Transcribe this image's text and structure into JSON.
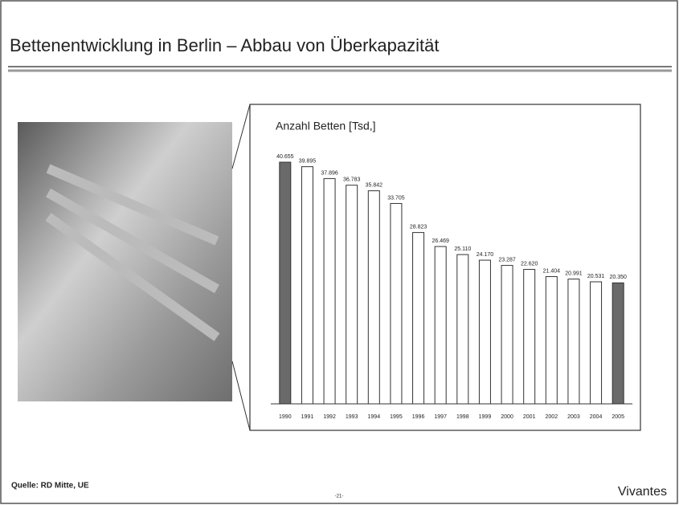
{
  "slide_title": "Bettenentwicklung in Berlin – Abbau von Überkapazität",
  "source": "Quelle: RD Mitte, UE",
  "page_number": "-21-",
  "logo": "Vivantes",
  "chart_data": {
    "type": "bar",
    "title": "Anzahl Betten [Tsd,]",
    "categories": [
      "1990",
      "1991",
      "1992",
      "1993",
      "1994",
      "1995",
      "1996",
      "1997",
      "1998",
      "1999",
      "2000",
      "2001",
      "2002",
      "2003",
      "2004",
      "2005"
    ],
    "values": [
      40.655,
      39.895,
      37.896,
      36.783,
      35.842,
      33.705,
      28.823,
      26.469,
      25.11,
      24.17,
      23.287,
      22.62,
      21.404,
      20.991,
      20.531,
      20.35
    ],
    "value_labels": [
      "40.655",
      "39.895",
      "37.896",
      "36.783",
      "35.842",
      "33.705",
      "28.823",
      "26.469",
      "25.110",
      "24.170",
      "23.287",
      "22.620",
      "21.404",
      "20.991",
      "20.531",
      "20.350"
    ],
    "colors": [
      "#6a6a6a",
      "#ffffff",
      "#ffffff",
      "#ffffff",
      "#ffffff",
      "#ffffff",
      "#ffffff",
      "#ffffff",
      "#ffffff",
      "#ffffff",
      "#ffffff",
      "#ffffff",
      "#ffffff",
      "#ffffff",
      "#ffffff",
      "#6a6a6a"
    ]
  }
}
